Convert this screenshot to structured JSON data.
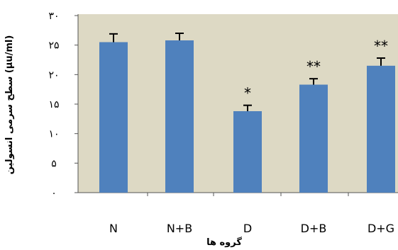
{
  "chart_data": {
    "type": "bar",
    "title": "",
    "ylabel": "سطح سرمی انسولین (μu/ml)",
    "xlabel": "گروه ها",
    "ylim": [
      0,
      30
    ],
    "yticks": [
      0,
      5,
      10,
      15,
      20,
      25,
      30
    ],
    "ytick_labels": [
      "۰",
      "۵",
      "۱۰",
      "۱۵",
      "۲۰",
      "۲۵",
      "۳۰"
    ],
    "categories": [
      "N",
      "N+B",
      "D",
      "D+B",
      "D+G"
    ],
    "values": [
      25.5,
      25.8,
      13.8,
      18.3,
      21.5
    ],
    "errors": [
      1.4,
      1.2,
      1.0,
      1.0,
      1.3
    ],
    "significance": [
      "",
      "",
      "*",
      "**",
      "**"
    ],
    "grid": false,
    "colors": {
      "bar": "#4f81bd",
      "plot_bg": "#ddd9c4",
      "axis": "#555555"
    }
  }
}
